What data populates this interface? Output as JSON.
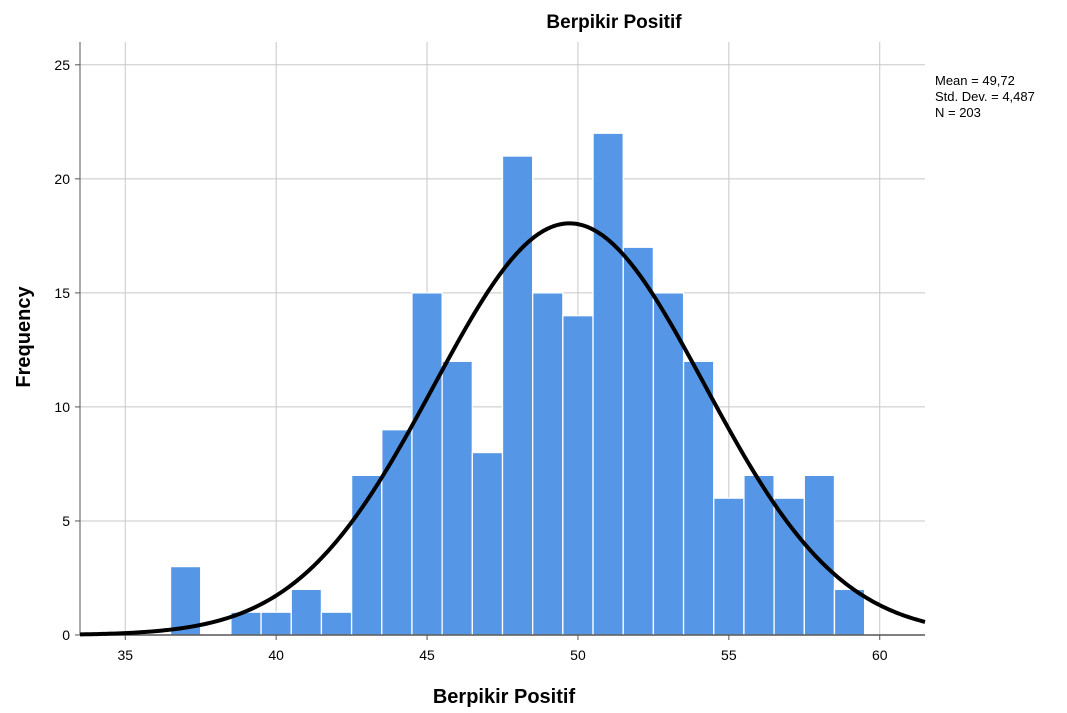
{
  "chart_data": {
    "type": "bar",
    "title": "Berpikir Positif",
    "xlabel": "Berpikir Positif",
    "ylabel": "Frequency",
    "xlim": [
      33.5,
      61.5
    ],
    "ylim": [
      0,
      26
    ],
    "x_ticks": [
      35,
      40,
      45,
      50,
      55,
      60
    ],
    "y_ticks": [
      0,
      5,
      10,
      15,
      20,
      25
    ],
    "grid": true,
    "bin_width": 1,
    "bins": [
      {
        "center": 37,
        "value": 3
      },
      {
        "center": 38,
        "value": 0
      },
      {
        "center": 39,
        "value": 1
      },
      {
        "center": 40,
        "value": 1
      },
      {
        "center": 41,
        "value": 2
      },
      {
        "center": 42,
        "value": 1
      },
      {
        "center": 43,
        "value": 7
      },
      {
        "center": 44,
        "value": 9
      },
      {
        "center": 45,
        "value": 15
      },
      {
        "center": 46,
        "value": 12
      },
      {
        "center": 47,
        "value": 8
      },
      {
        "center": 48,
        "value": 21
      },
      {
        "center": 49,
        "value": 15
      },
      {
        "center": 50,
        "value": 14
      },
      {
        "center": 51,
        "value": 22
      },
      {
        "center": 52,
        "value": 17
      },
      {
        "center": 53,
        "value": 15
      },
      {
        "center": 54,
        "value": 12
      },
      {
        "center": 55,
        "value": 6
      },
      {
        "center": 56,
        "value": 7
      },
      {
        "center": 57,
        "value": 6
      },
      {
        "center": 58,
        "value": 7
      },
      {
        "center": 59,
        "value": 2
      }
    ],
    "normal_curve": {
      "mean": 49.72,
      "sd": 4.487,
      "n": 203
    },
    "stats_text": [
      "Mean = 49,72",
      "Std. Dev. = 4,487",
      "N = 203"
    ],
    "colors": {
      "bar": "#5596e6",
      "bar_edge": "#ffffff",
      "grid": "#c8c8c8",
      "curve": "#000000",
      "axis": "#555555"
    }
  }
}
